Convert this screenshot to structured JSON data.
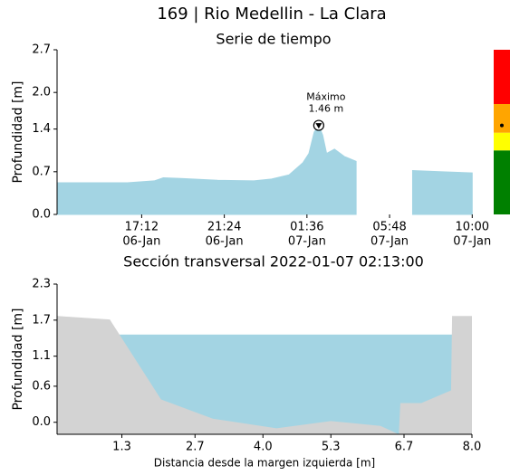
{
  "title": "169 | Rio Medellin - La Clara",
  "chart_data": [
    {
      "type": "area",
      "title": "Serie de tiempo",
      "ylabel": "Profundidad [m]",
      "color": "#a3d4e3",
      "x": [
        12.93,
        14.63,
        16.47,
        17.84,
        18.3,
        19.2,
        21.06,
        22.9,
        23.8,
        24.7,
        25.4,
        25.7,
        25.97,
        26.2,
        26.4,
        26.6,
        27.0,
        27.5,
        28.1,
        28.2,
        30.97,
        32.5,
        34.0
      ],
      "values": [
        0.52,
        0.52,
        0.52,
        0.55,
        0.6,
        0.59,
        0.56,
        0.55,
        0.58,
        0.65,
        0.85,
        1.0,
        1.35,
        1.46,
        1.3,
        1.0,
        1.07,
        0.95,
        0.87,
        null,
        0.72,
        0.7,
        0.68
      ],
      "xlim": [
        12.9,
        35.0
      ],
      "xticks": [
        {
          "value": 17.2,
          "label": [
            "17:12",
            "06-Jan"
          ]
        },
        {
          "value": 21.4,
          "label": [
            "21:24",
            "06-Jan"
          ]
        },
        {
          "value": 25.6,
          "label": [
            "01:36",
            "07-Jan"
          ]
        },
        {
          "value": 29.8,
          "label": [
            "05:48",
            "07-Jan"
          ]
        },
        {
          "value": 34.0,
          "label": [
            "10:00",
            "07-Jan"
          ]
        }
      ],
      "ylim": [
        0,
        2.7
      ],
      "yticks": [
        {
          "value": 0,
          "label": "0.0"
        },
        0.7,
        1.4,
        {
          "value": 2,
          "label": "2.0"
        },
        2.7
      ],
      "annotation": {
        "text": [
          "Máximo",
          "1.46 m"
        ],
        "x": 26.2,
        "y": 1.46
      },
      "alert_bands": [
        {
          "color": "#008000",
          "upper": 1.05
        },
        {
          "color": "#ffff00",
          "upper": 1.34
        },
        {
          "color": "#ffa500",
          "upper": 1.81
        },
        {
          "color": "#ff0000",
          "upper": 2.7
        }
      ],
      "alert_marker": 1.46
    },
    {
      "type": "cross_section",
      "title": "Sección transversal 2022-01-07 02:13:00",
      "ylabel": "Profundidad [m]",
      "xlabel": "Distancia desde la margen izquierda [m]",
      "water_level": 1.46,
      "water_color": "#a3d4e3",
      "ground_color": "#d3d3d3",
      "ground": {
        "x": [
          0.06,
          1.07,
          2.05,
          3.04,
          4.26,
          5.3,
          6.25,
          6.6,
          6.63,
          7.03,
          7.6,
          7.62,
          8.0
        ],
        "y": [
          1.77,
          1.71,
          0.38,
          0.06,
          -0.1,
          0.02,
          -0.06,
          -0.2,
          0.32,
          0.32,
          0.53,
          1.77,
          1.77
        ]
      },
      "xlim": [
        0.06,
        8.0
      ],
      "xticks": [
        1.3,
        2.7,
        {
          "value": 4,
          "label": "4.0"
        },
        5.3,
        6.7,
        {
          "value": 8,
          "label": "8.0"
        }
      ],
      "ylim": [
        -0.2,
        2.3
      ],
      "yticks": [
        {
          "value": 0,
          "label": "0.0"
        },
        0.6,
        1.1,
        1.7,
        2.3
      ]
    }
  ]
}
